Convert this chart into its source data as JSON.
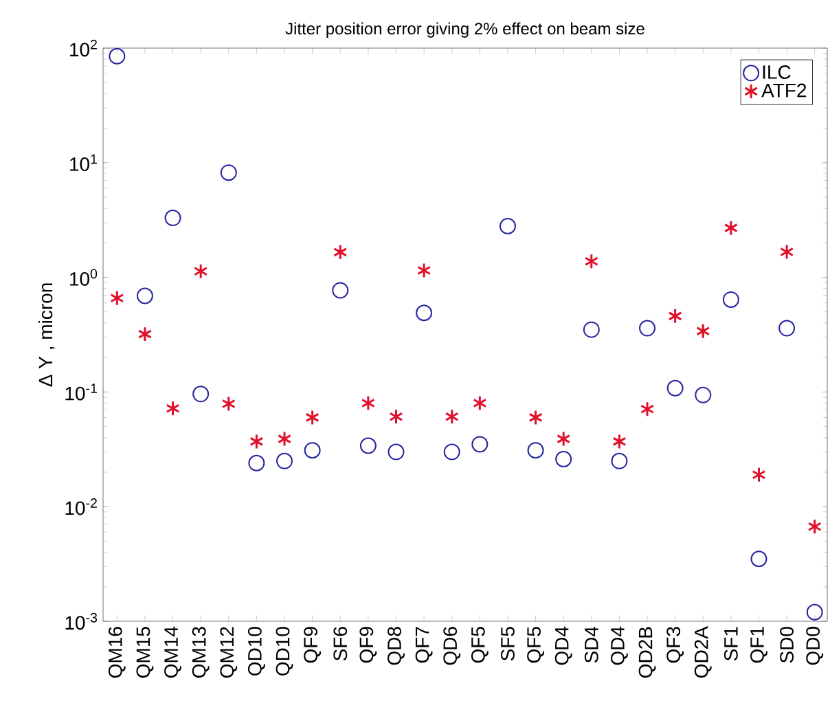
{
  "chart_data": {
    "type": "scatter",
    "title": "Jitter position error giving 2% effect on beam size",
    "ylabel": "Δ Y , micron",
    "categories": [
      "QM16",
      "QM15",
      "QM14",
      "QM13",
      "QM12",
      "QD10",
      "QD10",
      "QF9",
      "SF6",
      "QF9",
      "QD8",
      "QF7",
      "QD6",
      "QF5",
      "SF5",
      "QF5",
      "QD4",
      "SD4",
      "QD4",
      "QD2B",
      "QF3",
      "QD2A",
      "SF1",
      "QF1",
      "SD0",
      "QD0"
    ],
    "series": [
      {
        "name": "ILC",
        "color": "#2626a0",
        "marker": "circle",
        "values": [
          85,
          0.69,
          3.3,
          0.096,
          8.2,
          0.024,
          0.025,
          0.031,
          0.77,
          0.034,
          0.03,
          0.49,
          0.03,
          0.035,
          2.8,
          0.031,
          0.026,
          0.35,
          0.025,
          0.36,
          0.108,
          0.094,
          0.64,
          0.0035,
          0.36,
          0.0012
        ]
      },
      {
        "name": "ATF2",
        "color": "#e0102a",
        "marker": "cross",
        "values": [
          0.66,
          0.32,
          0.072,
          1.13,
          0.079,
          0.037,
          0.039,
          0.06,
          1.66,
          0.08,
          0.061,
          1.15,
          0.061,
          0.08,
          null,
          0.06,
          0.039,
          1.38,
          0.037,
          0.071,
          0.46,
          0.34,
          2.7,
          0.019,
          1.67,
          0.0067
        ]
      }
    ],
    "log": "y",
    "ylim": [
      0.001,
      100
    ],
    "yticks": [
      {
        "value": 0.001,
        "label": "10$^{-3}$"
      },
      {
        "value": 0.01,
        "label": "10$^{-2}$"
      },
      {
        "value": 0.1,
        "label": "10$^{-1}$"
      },
      {
        "value": 1,
        "label": "10$^{0}$"
      },
      {
        "value": 10,
        "label": "10$^{1}$"
      },
      {
        "value": 100,
        "label": "10$^{2}$"
      }
    ],
    "legend": "top right",
    "grid": false
  }
}
